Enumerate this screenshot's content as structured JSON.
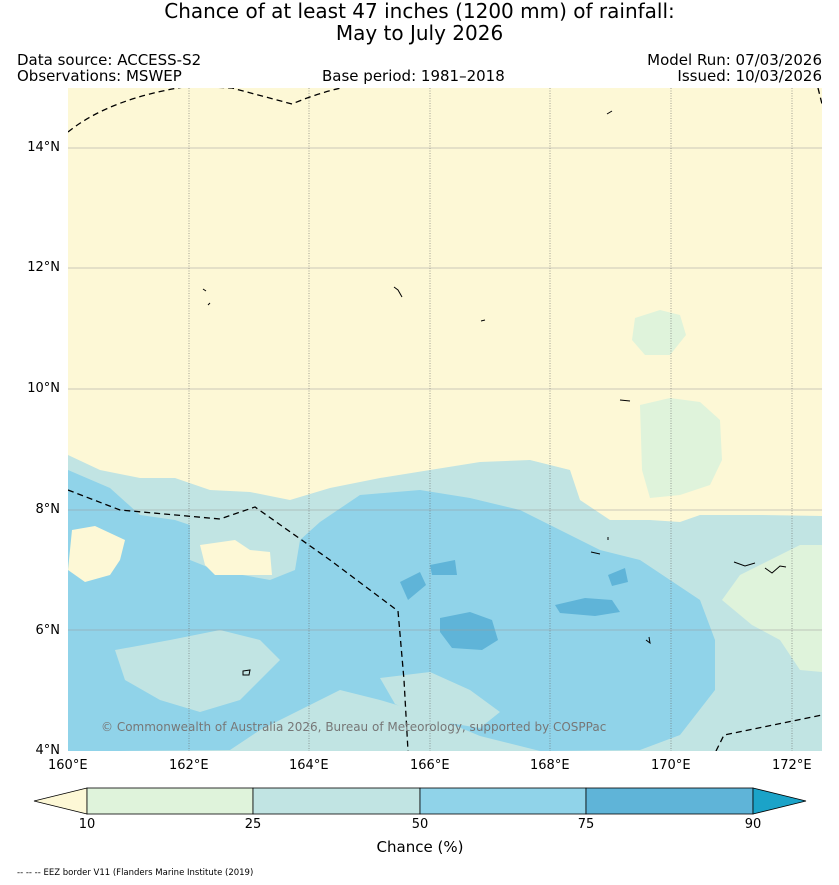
{
  "title_line1": "Chance of at least 47 inches (1200  mm) of rainfall:",
  "title_line2": "May to July 2026",
  "data_source": "Data source: ACCESS-S2",
  "observations": "Observations: MSWEP",
  "base_period": "Base period: 1981–2018",
  "model_run": "Model Run: 07/03/2026",
  "issued": "Issued: 10/03/2026",
  "copyright": "© Commonwealth of Australia 2026, Bureau of Meteorology, supported by COSPPac",
  "footer": "-- -- -- EEZ border V11 (Flanders Marine Institute (2019)",
  "axes": {
    "lon_labels": [
      "160°E",
      "162°E",
      "164°E",
      "166°E",
      "168°E",
      "170°E",
      "172°E"
    ],
    "lat_labels": [
      "14°N",
      "12°N",
      "10°N",
      "8°N",
      "6°N",
      "4°N"
    ]
  },
  "colorbar": {
    "label": "Chance (%)",
    "ticks": [
      "10",
      "25",
      "50",
      "75",
      "90"
    ],
    "colors": {
      "below_10": "#fdf8d6",
      "c10_25": "#dff3db",
      "c25_50": "#c1e4e3",
      "c50_75": "#90d3e9",
      "c75_90": "#5fb4d8",
      "above_90": "#1ba3c8"
    }
  }
}
